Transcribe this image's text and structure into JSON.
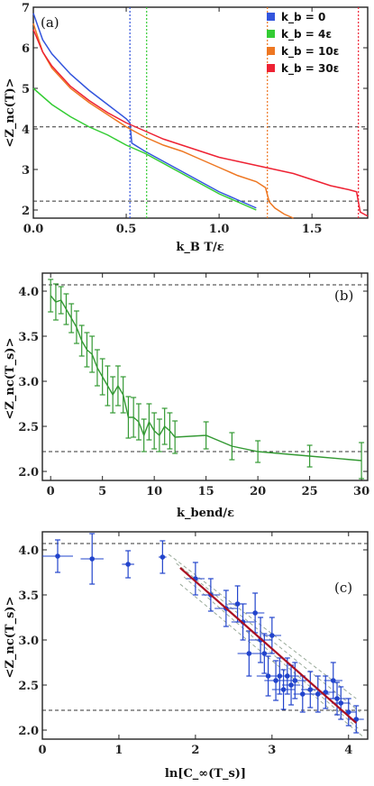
{
  "chart_data": [
    {
      "type": "line",
      "panel_label": "(a)",
      "xlabel": "k_B T/ε",
      "ylabel": "<Z_nc(T)>",
      "xlim": [
        0,
        1.8
      ],
      "ylim": [
        1.8,
        7.0
      ],
      "xticks": [
        0.0,
        0.5,
        1.0,
        1.5
      ],
      "xtick_labels": [
        "0.0",
        "0.5",
        "1.0",
        "1.5"
      ],
      "yticks": [
        2,
        3,
        4,
        5,
        6,
        7
      ],
      "ytick_labels": [
        "2",
        "3",
        "4",
        "5",
        "6",
        "7"
      ],
      "hlines": [
        4.05,
        2.22
      ],
      "legend_position": "top-right",
      "series": [
        {
          "name": "k_b = 0",
          "color": "#3355dd",
          "vline": 0.52,
          "x": [
            0.0,
            0.05,
            0.1,
            0.2,
            0.3,
            0.4,
            0.5,
            0.52,
            0.53,
            0.6,
            0.7,
            0.8,
            0.9,
            1.0,
            1.1,
            1.2
          ],
          "y": [
            6.85,
            6.2,
            5.85,
            5.35,
            4.95,
            4.6,
            4.25,
            4.15,
            3.65,
            3.45,
            3.2,
            2.95,
            2.7,
            2.45,
            2.25,
            2.05
          ]
        },
        {
          "name": "k_b = 4ε",
          "color": "#33cc33",
          "vline": 0.61,
          "x": [
            0.0,
            0.1,
            0.2,
            0.3,
            0.4,
            0.5,
            0.6,
            0.7,
            0.8,
            0.9,
            1.0,
            1.1,
            1.2
          ],
          "y": [
            5.0,
            4.6,
            4.3,
            4.05,
            3.85,
            3.6,
            3.4,
            3.15,
            2.9,
            2.65,
            2.4,
            2.2,
            2.0
          ]
        },
        {
          "name": "k_b = 10ε",
          "color": "#ee7722",
          "vline": 1.26,
          "x": [
            0.0,
            0.05,
            0.1,
            0.2,
            0.3,
            0.4,
            0.5,
            0.6,
            0.7,
            0.8,
            0.9,
            1.0,
            1.1,
            1.2,
            1.25,
            1.27,
            1.3,
            1.35,
            1.4
          ],
          "y": [
            6.6,
            5.9,
            5.5,
            5.0,
            4.65,
            4.35,
            4.05,
            3.8,
            3.6,
            3.45,
            3.25,
            3.05,
            2.85,
            2.7,
            2.55,
            2.2,
            2.05,
            1.9,
            1.75
          ]
        },
        {
          "name": "k_b = 30ε",
          "color": "#ee2233",
          "vline": 1.75,
          "x": [
            0.0,
            0.05,
            0.1,
            0.2,
            0.3,
            0.4,
            0.5,
            0.6,
            0.7,
            0.8,
            0.9,
            1.0,
            1.1,
            1.2,
            1.3,
            1.4,
            1.5,
            1.6,
            1.7,
            1.74,
            1.76,
            1.8
          ],
          "y": [
            6.45,
            5.9,
            5.55,
            5.05,
            4.7,
            4.4,
            4.15,
            3.95,
            3.75,
            3.6,
            3.45,
            3.3,
            3.2,
            3.1,
            3.0,
            2.9,
            2.75,
            2.6,
            2.5,
            2.45,
            1.95,
            1.85
          ]
        }
      ]
    },
    {
      "type": "line",
      "panel_label": "(b)",
      "xlabel": "k_bend/ε",
      "ylabel": "<Z_nc(T_s)>",
      "xlim": [
        -0.8,
        30.6
      ],
      "ylim": [
        1.9,
        4.2
      ],
      "xticks": [
        0,
        5,
        10,
        15,
        20,
        25,
        30
      ],
      "xtick_labels": [
        "0",
        "5",
        "10",
        "15",
        "20",
        "25",
        "30"
      ],
      "yticks": [
        2.0,
        2.5,
        3.0,
        3.5,
        4.0
      ],
      "ytick_labels": [
        "2.0",
        "2.5",
        "3.0",
        "3.5",
        "4.0"
      ],
      "hlines": [
        4.07,
        2.22
      ],
      "series": [
        {
          "color": "#339933",
          "x": [
            0,
            0.5,
            1,
            1.5,
            2,
            2.5,
            3,
            3.5,
            4,
            4.5,
            5,
            5.5,
            6,
            6.5,
            7,
            7.5,
            8,
            8.5,
            9,
            9.5,
            10,
            10.5,
            11,
            11.5,
            12,
            15,
            17.5,
            20,
            25,
            30
          ],
          "y": [
            3.95,
            3.88,
            3.9,
            3.8,
            3.7,
            3.6,
            3.45,
            3.35,
            3.3,
            3.15,
            3.05,
            2.95,
            2.85,
            2.95,
            2.85,
            2.6,
            2.6,
            2.55,
            2.4,
            2.55,
            2.45,
            2.4,
            2.5,
            2.45,
            2.38,
            2.4,
            2.28,
            2.22,
            2.17,
            2.12
          ],
          "yerr": [
            0.18,
            0.2,
            0.15,
            0.17,
            0.16,
            0.18,
            0.17,
            0.19,
            0.2,
            0.2,
            0.2,
            0.22,
            0.2,
            0.22,
            0.2,
            0.23,
            0.22,
            0.2,
            0.18,
            0.2,
            0.2,
            0.18,
            0.2,
            0.2,
            0.18,
            0.15,
            0.15,
            0.12,
            0.12,
            0.2
          ]
        }
      ]
    },
    {
      "type": "scatter",
      "panel_label": "(c)",
      "xlabel": "ln[C_∞(T_s)]",
      "ylabel": "<Z_nc(T_s)>",
      "xlim": [
        0,
        4.25
      ],
      "ylim": [
        1.9,
        4.2
      ],
      "xticks": [
        0,
        1,
        2,
        3,
        4
      ],
      "xtick_labels": [
        "0",
        "1",
        "2",
        "3",
        "4"
      ],
      "yticks": [
        2.0,
        2.5,
        3.0,
        3.5,
        4.0
      ],
      "ytick_labels": [
        "2.0",
        "2.5",
        "3.0",
        "3.5",
        "4.0"
      ],
      "hlines": [
        4.07,
        2.22
      ],
      "fit_line": {
        "x": [
          1.8,
          4.1
        ],
        "y": [
          3.8,
          2.08
        ],
        "color": "#aa1122"
      },
      "band_lines": [
        {
          "x": [
            1.65,
            4.1
          ],
          "y": [
            3.95,
            2.35
          ]
        },
        {
          "x": [
            1.8,
            4.2
          ],
          "y": [
            3.62,
            1.92
          ]
        },
        {
          "x": [
            1.75,
            4.15
          ],
          "y": [
            3.85,
            2.2
          ]
        },
        {
          "x": [
            1.85,
            4.15
          ],
          "y": [
            3.7,
            2.0
          ]
        }
      ],
      "series": [
        {
          "color": "#2244cc",
          "x": [
            0.2,
            0.65,
            1.12,
            1.57,
            2.0,
            2.2,
            2.4,
            2.55,
            2.62,
            2.7,
            2.78,
            2.85,
            2.9,
            2.95,
            3.0,
            3.05,
            3.1,
            3.15,
            3.2,
            3.25,
            3.3,
            3.4,
            3.5,
            3.6,
            3.7,
            3.8,
            3.85,
            3.9,
            4.0,
            4.1
          ],
          "y": [
            3.93,
            3.9,
            3.84,
            3.92,
            3.68,
            3.5,
            3.35,
            3.4,
            3.2,
            2.85,
            3.3,
            3.0,
            2.85,
            2.6,
            3.05,
            2.55,
            2.6,
            2.45,
            2.6,
            2.5,
            2.55,
            2.4,
            2.45,
            2.4,
            2.42,
            2.55,
            2.35,
            2.3,
            2.2,
            2.12
          ],
          "xerr": [
            0.2,
            0.15,
            0.08,
            0.05,
            0.12,
            0.12,
            0.15,
            0.12,
            0.15,
            0.15,
            0.12,
            0.15,
            0.12,
            0.15,
            0.12,
            0.15,
            0.12,
            0.15,
            0.15,
            0.12,
            0.15,
            0.12,
            0.12,
            0.15,
            0.12,
            0.12,
            0.12,
            0.12,
            0.1,
            0.1
          ],
          "yerr": [
            0.18,
            0.28,
            0.15,
            0.18,
            0.18,
            0.18,
            0.2,
            0.2,
            0.2,
            0.25,
            0.22,
            0.25,
            0.22,
            0.22,
            0.2,
            0.22,
            0.2,
            0.22,
            0.2,
            0.22,
            0.2,
            0.2,
            0.2,
            0.2,
            0.18,
            0.2,
            0.18,
            0.18,
            0.15,
            0.15
          ]
        }
      ]
    }
  ]
}
